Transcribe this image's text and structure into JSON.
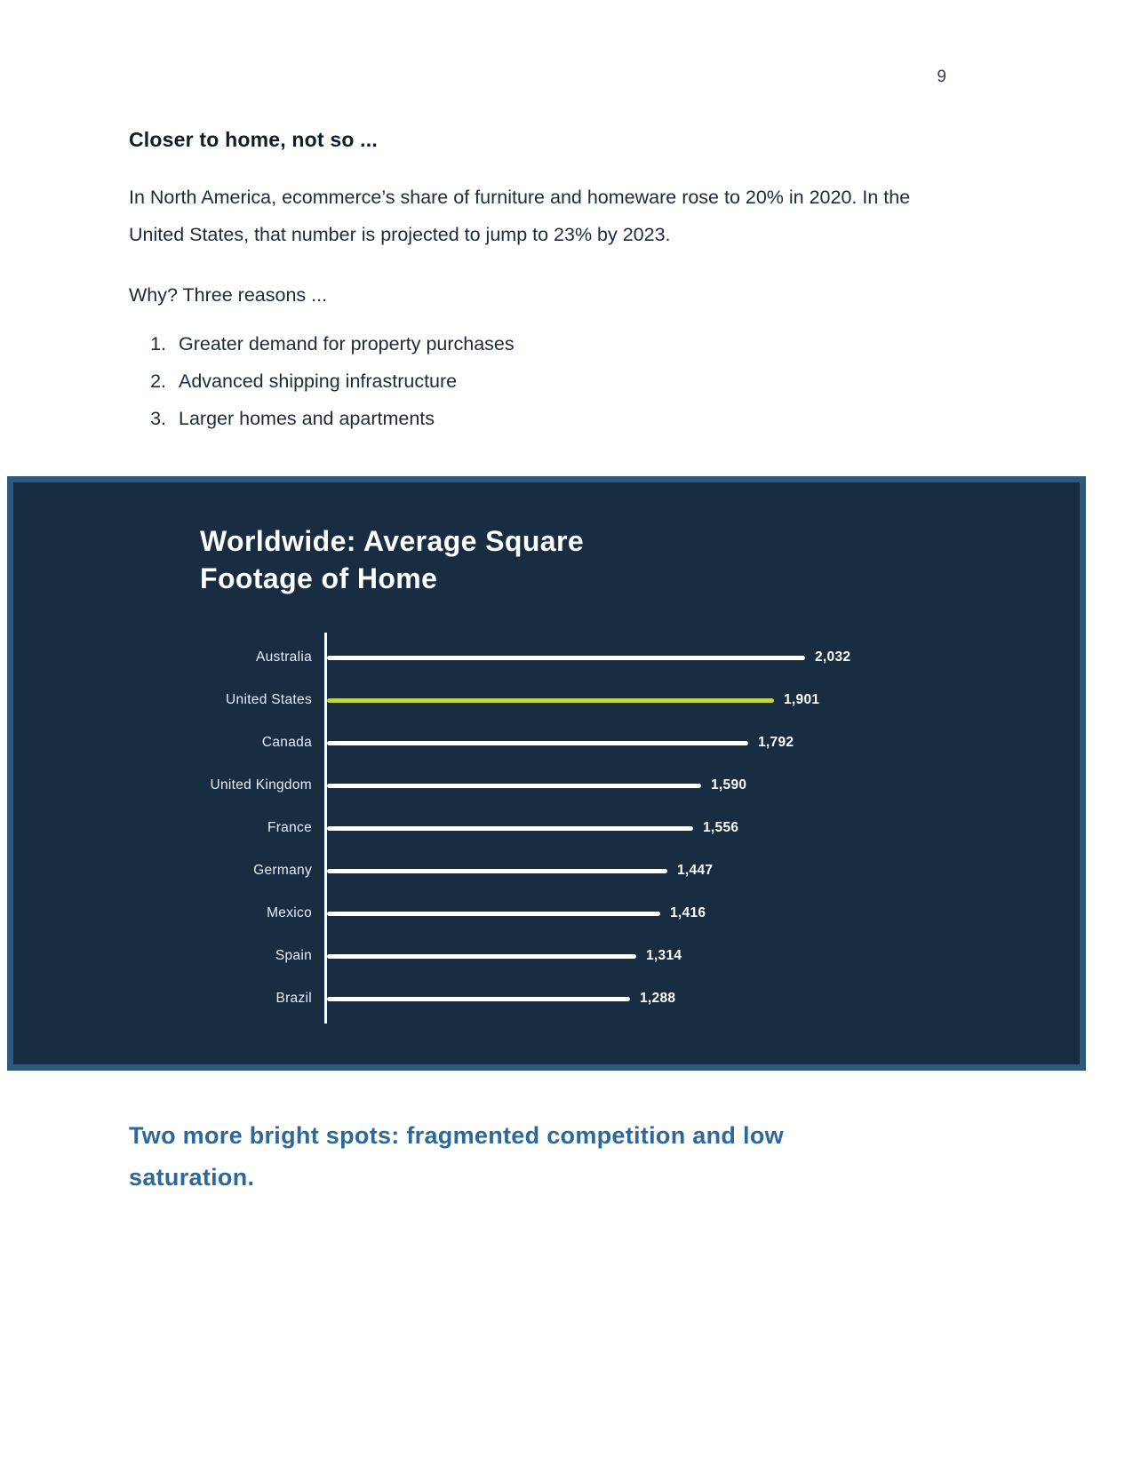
{
  "page": {
    "number": "9",
    "section_heading": "Closer to home, not so ...",
    "paragraph1": "In North America, ecommerce’s share of furniture and homeware rose to 20% in 2020. In the United States, that number is projected to jump to 23% by 2023.",
    "why_line": "Why? Three reasons ...",
    "list": [
      "Greater demand for property purchases",
      "Advanced shipping infrastructure",
      "Larger homes and apartments"
    ],
    "closing_heading": "Two more bright spots: fragmented competition and low saturation."
  },
  "chart_data": {
    "type": "bar",
    "orientation": "horizontal",
    "title": "Worldwide: Average Square Footage of Home",
    "categories": [
      "Australia",
      "United States",
      "Canada",
      "United Kingdom",
      "France",
      "Germany",
      "Mexico",
      "Spain",
      "Brazil"
    ],
    "values": [
      2032,
      1901,
      1792,
      1590,
      1556,
      1447,
      1416,
      1314,
      1288
    ],
    "value_labels": [
      "2,032",
      "1,901",
      "1,792",
      "1,590",
      "1,556",
      "1,447",
      "1,416",
      "1,314",
      "1,288"
    ],
    "xlabel": "",
    "ylabel": "",
    "xlim": [
      0,
      2100
    ],
    "grid": false,
    "legend": "none",
    "highlight_category": "United States",
    "highlight_color": "#c5d345",
    "bar_color": "#ffffff",
    "panel_background": "#182c42",
    "panel_border_color": "#2f5978"
  }
}
